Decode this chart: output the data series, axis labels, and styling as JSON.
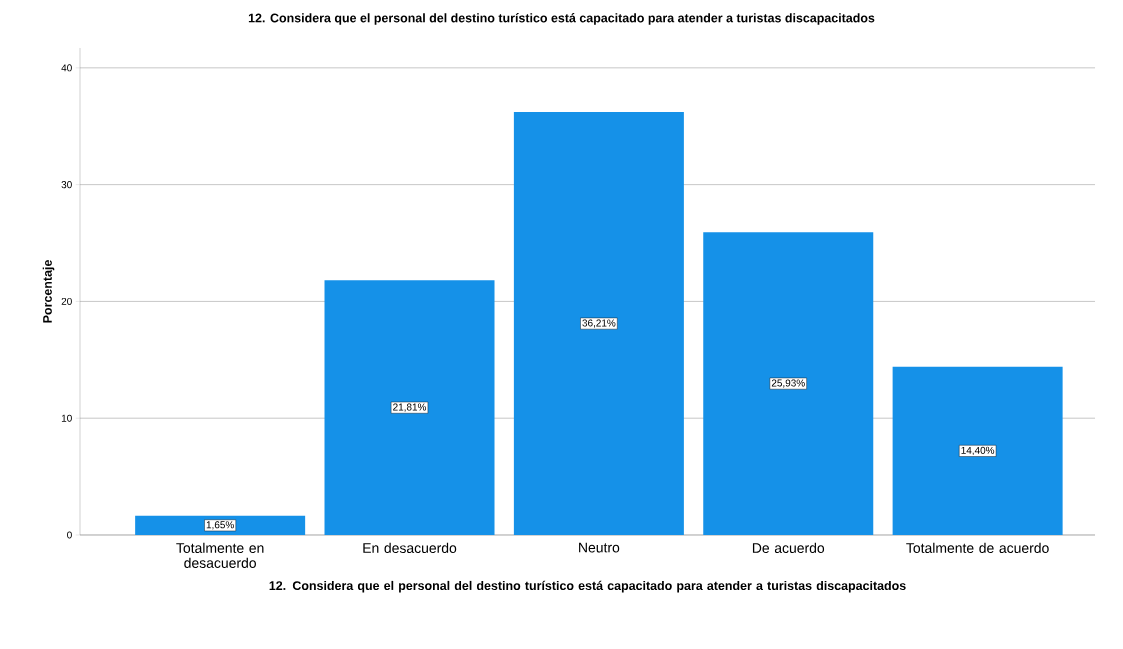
{
  "chart_data": {
    "type": "bar",
    "title": "12. Considera que el personal del destino turístico está capacitado para atender a turistas discapacitados",
    "xlabel": "12. Considera que el personal del destino turístico está capacitado para atender a turistas discapacitados",
    "ylabel": "Porcentaje",
    "categories": [
      "Totalmente en desacuerdo",
      "En desacuerdo",
      "Neutro",
      "De acuerdo",
      "Totalmente de acuerdo"
    ],
    "values": [
      1.65,
      21.81,
      36.21,
      25.93,
      14.4
    ],
    "value_labels": [
      "1,65%",
      "21,81%",
      "36,21%",
      "25,93%",
      "14,40%"
    ],
    "color": "#1591e8",
    "ylim": [
      0,
      41.7
    ],
    "yticks": [
      0,
      10,
      20,
      30,
      40
    ],
    "grid": "y"
  }
}
